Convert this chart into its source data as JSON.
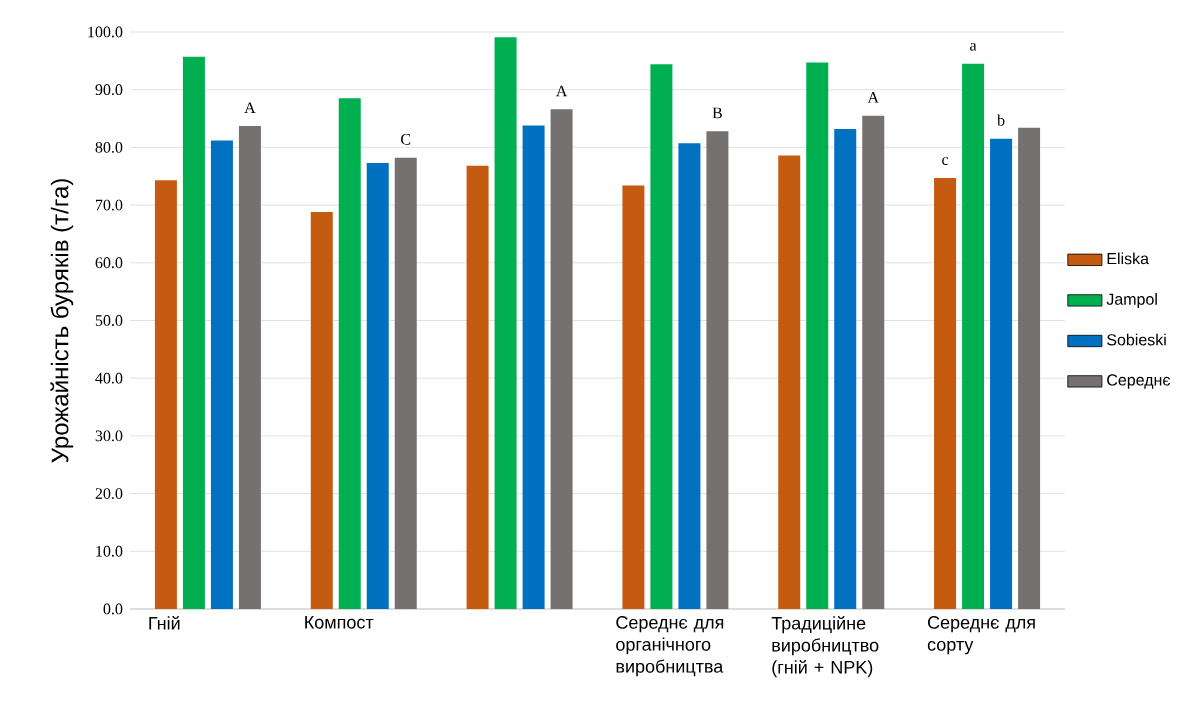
{
  "chart_data": {
    "type": "bar",
    "ylabel": "Урожайність буряків (т/га)",
    "categories": [
      "Гній",
      "Компост",
      null,
      "Середнє для органічного виробництва",
      "Традиційне виробництво (гній + NPK)",
      "Середнє для сорту"
    ],
    "ylim": [
      0,
      100
    ],
    "yticks": [
      {
        "value": 0,
        "label": "0.0"
      },
      {
        "value": 10,
        "label": "10.0"
      },
      {
        "value": 20,
        "label": "20.0"
      },
      {
        "value": 30,
        "label": "30.0"
      },
      {
        "value": 40,
        "label": "40.0"
      },
      {
        "value": 50,
        "label": "50.0"
      },
      {
        "value": 60,
        "label": "60.0"
      },
      {
        "value": 70,
        "label": "70.0"
      },
      {
        "value": 80,
        "label": "80.0"
      },
      {
        "value": 90,
        "label": "90.0"
      },
      {
        "value": 100,
        "label": "100.0"
      }
    ],
    "grid": "y",
    "legend": "right",
    "series": [
      {
        "name": "Eliska",
        "color": "#c55a11",
        "values": [
          74.3,
          68.8,
          76.8,
          73.4,
          78.6,
          74.7
        ],
        "value_labels": [
          null,
          null,
          null,
          null,
          null,
          "c"
        ]
      },
      {
        "name": "Jampol",
        "color": "#00b050",
        "values": [
          95.7,
          88.5,
          99.1,
          94.4,
          94.7,
          94.5
        ],
        "value_labels": [
          null,
          null,
          null,
          null,
          null,
          "a"
        ]
      },
      {
        "name": "Sobieski",
        "color": "#0070c0",
        "values": [
          81.2,
          77.3,
          83.8,
          80.7,
          83.2,
          81.5
        ],
        "value_labels": [
          null,
          null,
          null,
          null,
          null,
          "b"
        ]
      },
      {
        "name": "Середнє",
        "color": "#767171",
        "values": [
          83.7,
          78.2,
          86.6,
          82.8,
          85.5,
          83.4
        ],
        "value_labels": [
          "A",
          "C",
          "A",
          "B",
          "A",
          null
        ]
      }
    ]
  }
}
